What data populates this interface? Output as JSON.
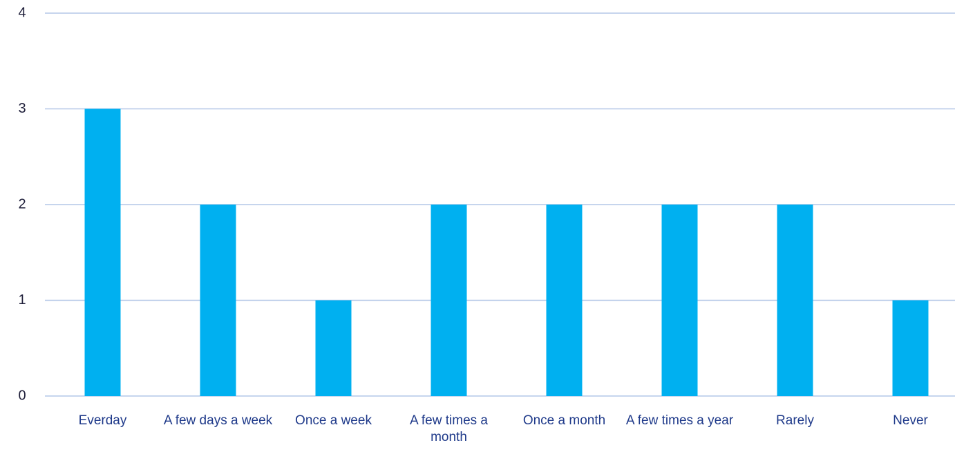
{
  "chart_data": {
    "type": "bar",
    "categories": [
      "Everday",
      "A few days a week",
      "Once a week",
      "A few times a month",
      "Once a month",
      "A few times a year",
      "Rarely",
      "Never"
    ],
    "values": [
      3,
      2,
      1,
      2,
      2,
      2,
      2,
      1
    ],
    "color": "#00b0f0",
    "ylim": [
      0,
      4
    ],
    "yticks": [
      0,
      1,
      2,
      3,
      4
    ],
    "grid": true
  }
}
